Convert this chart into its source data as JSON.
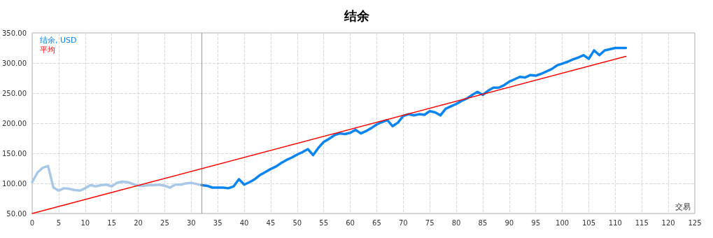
{
  "chart_data": {
    "type": "line",
    "title": "结余",
    "xlabel": "交易",
    "xlim": [
      0,
      125
    ],
    "xticks": [
      0,
      5,
      10,
      15,
      20,
      25,
      30,
      35,
      40,
      45,
      50,
      55,
      60,
      65,
      70,
      75,
      80,
      85,
      90,
      95,
      100,
      105,
      110,
      115,
      120,
      125
    ],
    "ylim": [
      50,
      350
    ],
    "yticks": [
      {
        "value": 50,
        "label": "50.00"
      },
      {
        "value": 100,
        "label": "100.00"
      },
      {
        "value": 150,
        "label": "150.00"
      },
      {
        "value": 200,
        "label": "200.00"
      },
      {
        "value": 250,
        "label": "250.00"
      },
      {
        "value": 300,
        "label": "300.00"
      },
      {
        "value": 350,
        "label": "350.00"
      }
    ],
    "grid": true,
    "legend": "top left",
    "marker": "none",
    "line_style": "solid",
    "ref_lines": [
      {
        "axis": "x",
        "value": 32,
        "color": "#999999"
      }
    ],
    "series": [
      {
        "color": "#a8c8e8",
        "x": [
          0,
          1,
          2,
          3,
          4,
          5,
          6,
          7,
          8,
          9,
          10,
          11,
          12,
          13,
          14,
          15,
          16,
          17,
          18,
          19,
          20,
          21,
          22,
          23,
          24,
          25,
          26,
          27,
          28,
          29,
          30,
          31,
          32
        ],
        "values": [
          102,
          118,
          126,
          129,
          93,
          88,
          92,
          91,
          89,
          88,
          92,
          97,
          95,
          97,
          98,
          95,
          101,
          103,
          102,
          99,
          96,
          96,
          97,
          97,
          98,
          96,
          93,
          98,
          98,
          100,
          101,
          99,
          97
        ]
      },
      {
        "name": "结余, USD",
        "color": "#0a84f0",
        "x": [
          32,
          33,
          34,
          35,
          36,
          37,
          38,
          39,
          40,
          41,
          42,
          43,
          44,
          45,
          46,
          47,
          48,
          49,
          50,
          51,
          52,
          53,
          54,
          55,
          56,
          57,
          58,
          59,
          60,
          61,
          62,
          63,
          64,
          65,
          66,
          67,
          68,
          69,
          70,
          71,
          72,
          73,
          74,
          75,
          76,
          77,
          78,
          79,
          80,
          81,
          82,
          83,
          84,
          85,
          86,
          87,
          88,
          89,
          90,
          91,
          92,
          93,
          94,
          95,
          96,
          97,
          98,
          99,
          100,
          101,
          102,
          103,
          104,
          105,
          106,
          107,
          108,
          109,
          110,
          111,
          112
        ],
        "values": [
          97,
          96,
          93,
          93,
          93,
          92,
          95,
          107,
          98,
          102,
          107,
          114,
          119,
          124,
          128,
          134,
          139,
          143,
          148,
          152,
          157,
          147,
          159,
          169,
          174,
          180,
          183,
          182,
          184,
          189,
          183,
          187,
          192,
          198,
          202,
          205,
          195,
          201,
          212,
          215,
          213,
          215,
          214,
          220,
          218,
          213,
          224,
          228,
          232,
          237,
          241,
          247,
          252,
          247,
          254,
          259,
          259,
          263,
          269,
          273,
          277,
          276,
          280,
          279,
          282,
          286,
          290,
          296,
          299,
          302,
          306,
          309,
          313,
          307,
          321,
          313,
          321,
          323,
          325,
          325,
          325
        ]
      },
      {
        "name": "平均",
        "color": "#ff0000",
        "x": [
          0,
          112
        ],
        "values": [
          50,
          311
        ]
      }
    ]
  }
}
